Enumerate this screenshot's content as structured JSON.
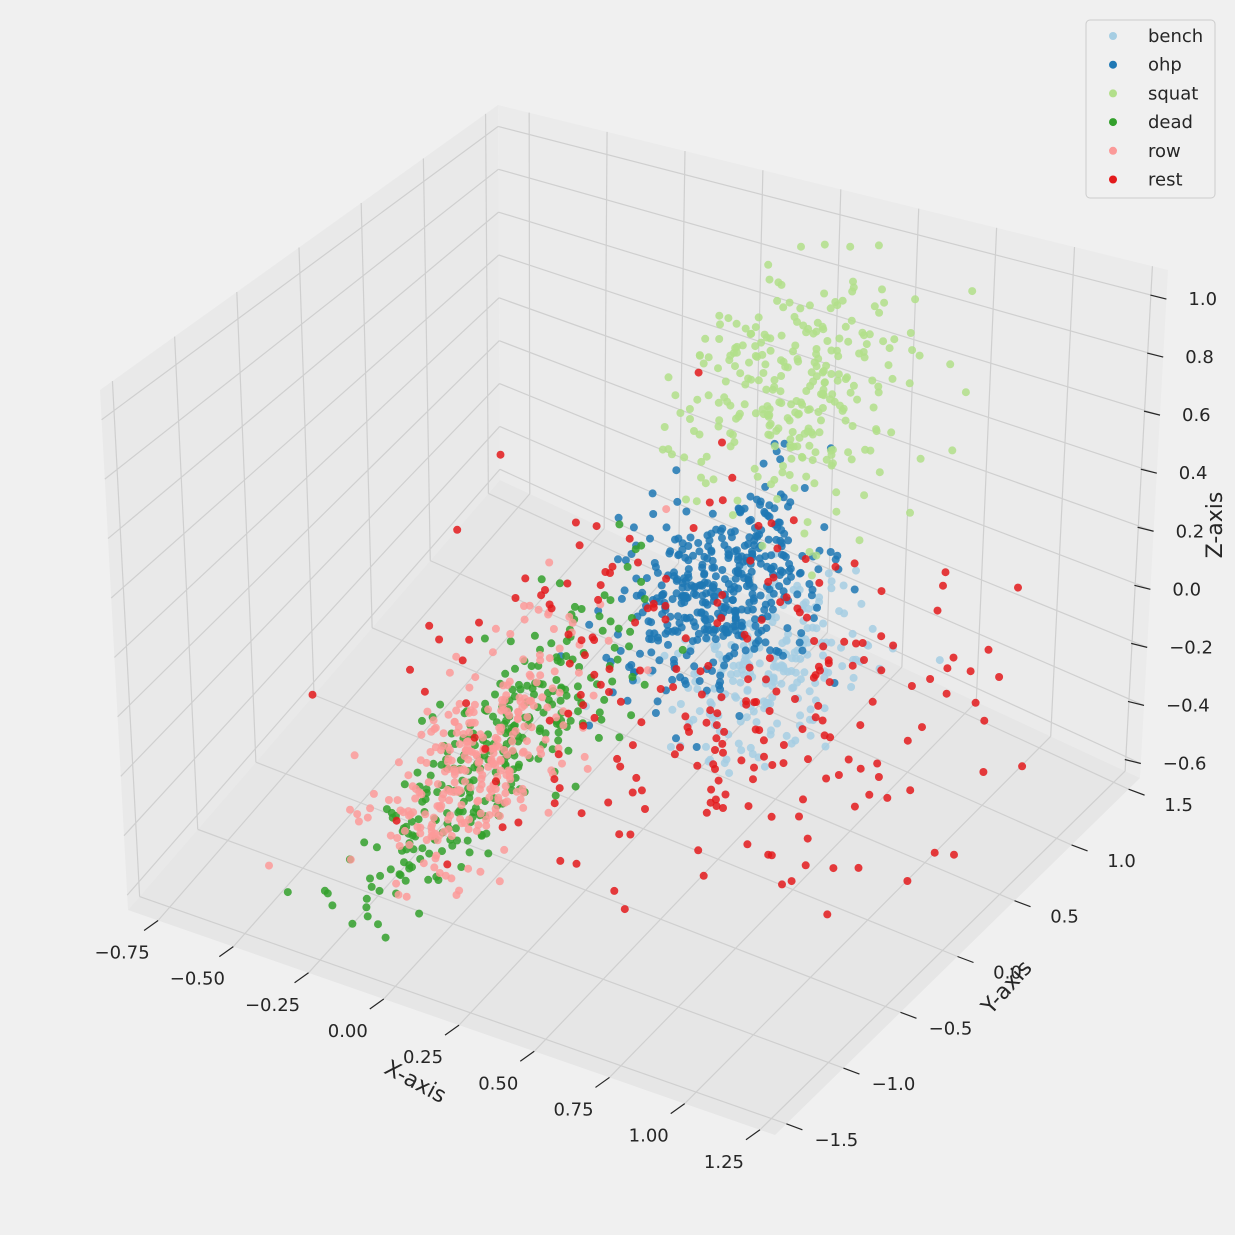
{
  "chart_data": {
    "type": "scatter",
    "projection": "3d",
    "grid": true,
    "legend_placement": "top-right",
    "xlabel": "X-axis",
    "ylabel": "Y-axis",
    "zlabel": "Z-axis",
    "xlim": [
      -0.85,
      1.3
    ],
    "ylim": [
      -1.6,
      1.6
    ],
    "zlim": [
      -0.65,
      1.1
    ],
    "x_ticks": [
      "−0.75",
      "−0.50",
      "−0.25",
      "0.00",
      "0.25",
      "0.50",
      "0.75",
      "1.00",
      "1.25"
    ],
    "y_ticks": [
      "−1.5",
      "−1.0",
      "−0.5",
      "0.0",
      "0.5",
      "1.0",
      "1.5"
    ],
    "z_ticks": [
      "−0.6",
      "−0.4",
      "−0.2",
      "0.0",
      "0.2",
      "0.4",
      "0.6",
      "0.8",
      "1.0"
    ],
    "series": [
      {
        "name": "bench",
        "color": "#a6cee3",
        "centroid": [
          0.55,
          0.3,
          -0.05
        ],
        "spread": [
          0.12,
          0.3,
          0.1
        ]
      },
      {
        "name": "ohp",
        "color": "#1f78b4",
        "centroid": [
          0.3,
          0.5,
          0.05
        ],
        "spread": [
          0.12,
          0.3,
          0.12
        ]
      },
      {
        "name": "squat",
        "color": "#b2df8a",
        "centroid": [
          0.45,
          0.8,
          0.75
        ],
        "spread": [
          0.15,
          0.3,
          0.2
        ]
      },
      {
        "name": "dead",
        "color": "#33a02c",
        "centroid": [
          -0.15,
          -0.3,
          -0.45
        ],
        "spread": [
          0.08,
          0.6,
          0.12
        ]
      },
      {
        "name": "row",
        "color": "#fb9a99",
        "centroid": [
          -0.2,
          -0.2,
          -0.5
        ],
        "spread": [
          0.1,
          0.45,
          0.1
        ]
      },
      {
        "name": "rest",
        "color": "#e31a1c",
        "centroid": [
          0.4,
          0.2,
          -0.2
        ],
        "spread": [
          0.4,
          0.6,
          0.25
        ]
      }
    ]
  }
}
